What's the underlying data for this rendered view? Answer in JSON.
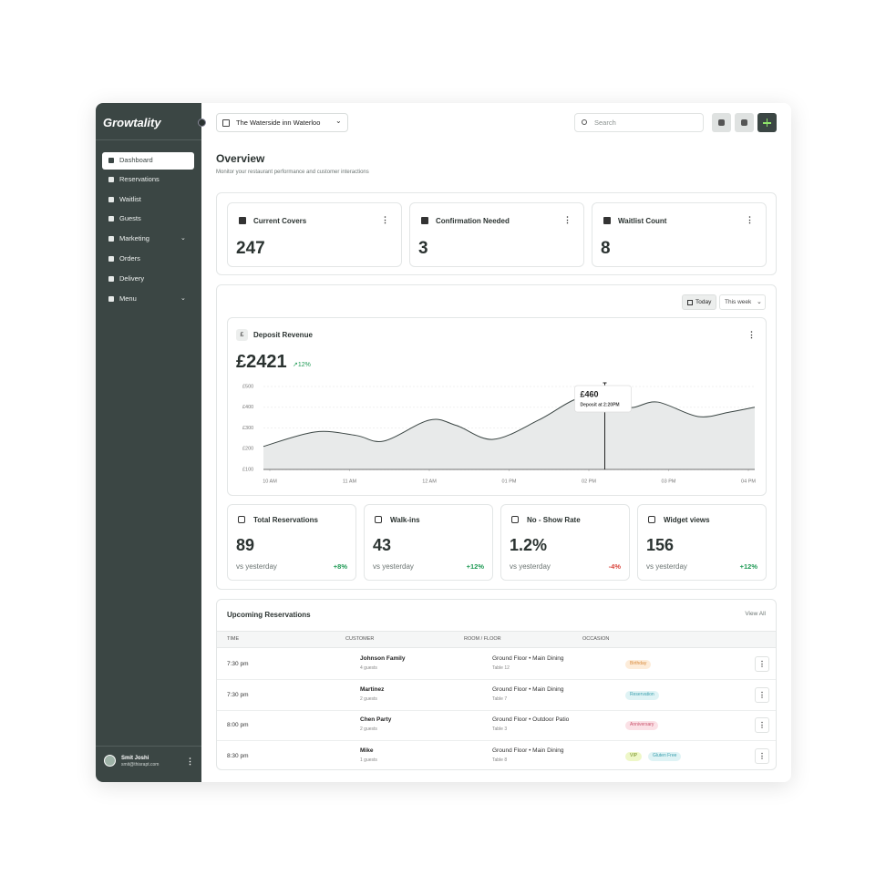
{
  "sidebar": {
    "brand": "Growtality",
    "nav": [
      "Dashboard",
      "Reservations",
      "Waitlist",
      "Guests",
      "Marketing",
      "Orders",
      "Delivery",
      "Menu"
    ],
    "user": {
      "name": "Smit Joshi",
      "email": "smit@thisrapt.com"
    }
  },
  "header": {
    "venue": "The Waterside inn Waterloo",
    "search": "Search"
  },
  "overview": {
    "title": "Overview",
    "subtitle": "Monitor your restaurant performance and customer interactions"
  },
  "summary": [
    {
      "label": "Current Covers",
      "value": "247"
    },
    {
      "label": "Confirmation Needed",
      "value": "3"
    },
    {
      "label": "Waitlist Count",
      "value": "8"
    }
  ],
  "period": [
    "Today",
    "This week"
  ],
  "chart_data": {
    "type": "area",
    "icon": "£",
    "title": "Deposit Revenue",
    "total": "£2421",
    "change": "↗12%",
    "x": [
      9.92,
      10.57,
      11.08,
      11.43,
      12.0,
      12.34,
      12.8,
      13.37,
      13.83,
      14.2,
      14.51,
      14.86,
      15.37,
      15.77,
      16.08
    ],
    "values": [
      211,
      281,
      264,
      237,
      338,
      312,
      245,
      338,
      438,
      460,
      399,
      425,
      355,
      377,
      400
    ],
    "xlim": [
      9.92,
      16.08
    ],
    "ylim": [
      100,
      500
    ],
    "xticks": [
      {
        "value": 10,
        "label": "10 AM"
      },
      {
        "value": 11,
        "label": "11 AM"
      },
      {
        "value": 12,
        "label": "12 AM"
      },
      {
        "value": 13,
        "label": "01 PM"
      },
      {
        "value": 14,
        "label": "02 PM"
      },
      {
        "value": 15,
        "label": "03 PM"
      },
      {
        "value": 16,
        "label": "04 PM"
      }
    ],
    "yticks": [
      {
        "value": 100,
        "label": "£100"
      },
      {
        "value": 200,
        "label": "£200"
      },
      {
        "value": 300,
        "label": "£300"
      },
      {
        "value": 400,
        "label": "£400"
      },
      {
        "value": 500,
        "label": "£500"
      }
    ],
    "grid": true,
    "color": "#e8eaea",
    "line_color": "#3b4644",
    "annotation": {
      "x": 14.2,
      "value": 460,
      "label": "£460",
      "text": "Deposit at 2:20PM"
    }
  },
  "metrics": [
    {
      "label": "Total Reservations",
      "value": "89",
      "compare": "vs yesterday",
      "change": "+8%"
    },
    {
      "label": "Walk-ins",
      "value": "43",
      "compare": "vs yesterday",
      "change": "+12%"
    },
    {
      "label": "No - Show Rate",
      "value": "1.2%",
      "compare": "vs yesterday",
      "change": "-4%"
    },
    {
      "label": "Widget views",
      "value": "156",
      "compare": "vs yesterday",
      "change": "+12%"
    }
  ],
  "reservations": {
    "title": "Upcoming Reservations",
    "link": "View All",
    "columns": [
      "TIME",
      "CUSTOMER",
      "ROOM / FLOOR",
      "OCCASION"
    ],
    "rows": [
      {
        "time": "7:30 pm",
        "customer": "Johnson Family",
        "guests": "4 guests",
        "room": "Ground Floor • Main Dining",
        "table": "Table 12",
        "tags": [
          "Birthday"
        ]
      },
      {
        "time": "7:30 pm",
        "customer": "Martinez",
        "guests": "2 guests",
        "room": "Ground Floor • Main Dining",
        "table": "Table 7",
        "tags": [
          "Reservation"
        ]
      },
      {
        "time": "8:00 pm",
        "customer": "Chen Party",
        "guests": "2 guests",
        "room": "Ground Floor • Outdoor Patio",
        "table": "Table 3",
        "tags": [
          "Anniversary"
        ]
      },
      {
        "time": "8:30 pm",
        "customer": "Mike",
        "guests": "1 guests",
        "room": "Ground Floor • Main Dining",
        "table": "Table 8",
        "tags": [
          "VIP",
          "Gluten Free"
        ]
      }
    ]
  }
}
